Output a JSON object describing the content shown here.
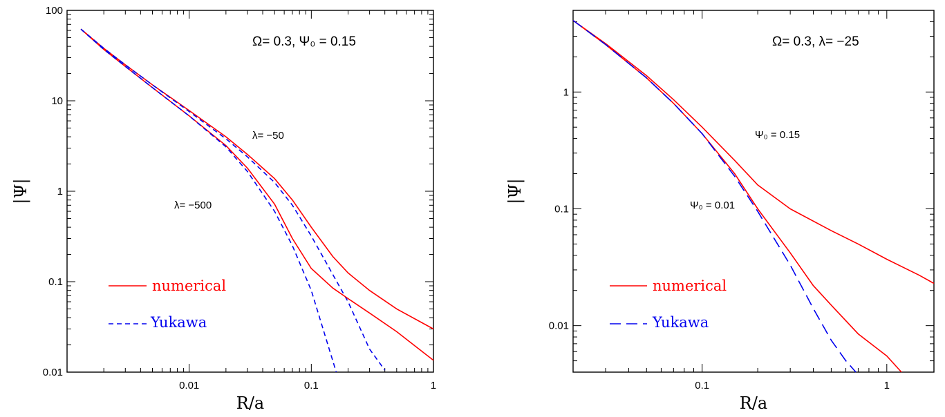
{
  "colors": {
    "numerical": "#ff0000",
    "yukawa": "#0000ee",
    "axes": "#000000"
  },
  "chart_data": [
    {
      "type": "line",
      "xlabel": "R/a",
      "ylabel": "|Ψ|",
      "xscale": "log",
      "yscale": "log",
      "xlim": [
        0.001,
        1
      ],
      "ylim": [
        0.01,
        100
      ],
      "xticks": [
        {
          "v": 0.01,
          "label": "0.01"
        },
        {
          "v": 0.1,
          "label": "0.1"
        },
        {
          "v": 1,
          "label": "1"
        }
      ],
      "yticks": [
        {
          "v": 0.01,
          "label": "0.01"
        },
        {
          "v": 0.1,
          "label": "0.1"
        },
        {
          "v": 1,
          "label": "1"
        },
        {
          "v": 10,
          "label": "10"
        },
        {
          "v": 100,
          "label": "100"
        }
      ],
      "annotations": {
        "params": "Ω=  0.3,  Ψ₀  =  0.15",
        "curve_a": "λ=  −50",
        "curve_b": "λ=  −500"
      },
      "legend": {
        "placement": "lower-left",
        "entries": [
          "numerical",
          "Yukawa"
        ]
      },
      "series": [
        {
          "name": "numerical",
          "group": "λ = −50",
          "style": "solid",
          "color": "#ff0000",
          "x": [
            0.0013,
            0.002,
            0.003,
            0.005,
            0.01,
            0.02,
            0.03,
            0.05,
            0.07,
            0.1,
            0.15,
            0.2,
            0.3,
            0.5,
            1.0
          ],
          "y": [
            62,
            38,
            25,
            15,
            7.8,
            4,
            2.55,
            1.38,
            0.8,
            0.4,
            0.19,
            0.125,
            0.08,
            0.05,
            0.03
          ]
        },
        {
          "name": "Yukawa",
          "group": "λ = −50",
          "style": "dashed",
          "color": "#0000ee",
          "x": [
            0.0013,
            0.002,
            0.003,
            0.005,
            0.01,
            0.02,
            0.03,
            0.05,
            0.07,
            0.1,
            0.15,
            0.2,
            0.3,
            0.4
          ],
          "y": [
            62,
            38,
            25,
            15,
            7.6,
            3.8,
            2.4,
            1.25,
            0.7,
            0.32,
            0.12,
            0.06,
            0.018,
            0.0105
          ]
        },
        {
          "name": "numerical",
          "group": "λ = −500",
          "style": "solid",
          "color": "#ff0000",
          "x": [
            0.0013,
            0.002,
            0.003,
            0.005,
            0.01,
            0.02,
            0.03,
            0.05,
            0.07,
            0.1,
            0.15,
            0.2,
            0.3,
            0.5,
            1.0
          ],
          "y": [
            62,
            37,
            24,
            14,
            6.8,
            3.2,
            1.8,
            0.72,
            0.3,
            0.14,
            0.085,
            0.065,
            0.045,
            0.028,
            0.0135
          ]
        },
        {
          "name": "Yukawa",
          "group": "λ = −500",
          "style": "dashed",
          "color": "#0000ee",
          "x": [
            0.0013,
            0.002,
            0.003,
            0.005,
            0.01,
            0.02,
            0.03,
            0.05,
            0.07,
            0.1,
            0.13,
            0.16
          ],
          "y": [
            62,
            37,
            24,
            14,
            6.8,
            3.1,
            1.65,
            0.6,
            0.25,
            0.08,
            0.025,
            0.01
          ]
        }
      ]
    },
    {
      "type": "line",
      "xlabel": "R/a",
      "ylabel": "|Ψ|",
      "xscale": "log",
      "yscale": "log",
      "xlim": [
        0.02,
        1.8
      ],
      "ylim": [
        0.004,
        5
      ],
      "xticks": [
        {
          "v": 0.1,
          "label": "0.1"
        },
        {
          "v": 1,
          "label": "1"
        }
      ],
      "yticks": [
        {
          "v": 0.01,
          "label": "0.01"
        },
        {
          "v": 0.1,
          "label": "0.1"
        },
        {
          "v": 1,
          "label": "1"
        }
      ],
      "annotations": {
        "params": "Ω=  0.3,  λ=  −25",
        "curve_a": "Ψ₀  =  0.15",
        "curve_b": "Ψ₀  =  0.01"
      },
      "legend": {
        "placement": "lower-left",
        "entries": [
          "numerical",
          "Yukawa"
        ]
      },
      "series": [
        {
          "name": "numerical",
          "group": "Ψ₀ = 0.15",
          "style": "solid",
          "color": "#ff0000",
          "x": [
            0.02,
            0.03,
            0.05,
            0.07,
            0.1,
            0.15,
            0.2,
            0.3,
            0.5,
            0.7,
            1.0,
            1.5,
            1.8
          ],
          "y": [
            4.1,
            2.6,
            1.38,
            0.86,
            0.5,
            0.26,
            0.16,
            0.1,
            0.065,
            0.05,
            0.037,
            0.027,
            0.023
          ]
        },
        {
          "name": "numerical",
          "group": "Ψ₀ = 0.01",
          "style": "solid",
          "color": "#ff0000",
          "x": [
            0.02,
            0.03,
            0.05,
            0.07,
            0.1,
            0.15,
            0.2,
            0.3,
            0.4,
            0.5,
            0.7,
            1.0,
            1.2
          ],
          "y": [
            4.1,
            2.55,
            1.32,
            0.8,
            0.44,
            0.2,
            0.1,
            0.042,
            0.022,
            0.015,
            0.0085,
            0.0055,
            0.004
          ]
        },
        {
          "name": "Yukawa",
          "group": "Ψ₀ = 0.01",
          "style": "dashed",
          "color": "#0000ee",
          "x": [
            0.02,
            0.03,
            0.05,
            0.07,
            0.1,
            0.15,
            0.2,
            0.3,
            0.4,
            0.5,
            0.6,
            0.68
          ],
          "y": [
            4.1,
            2.55,
            1.32,
            0.8,
            0.44,
            0.19,
            0.095,
            0.033,
            0.014,
            0.0075,
            0.005,
            0.004
          ]
        }
      ]
    }
  ]
}
